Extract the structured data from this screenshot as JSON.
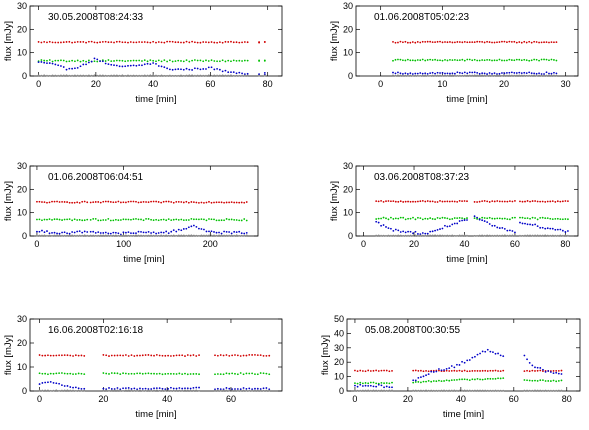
{
  "chart_data": [
    {
      "type": "scatter",
      "title": "30.05.2008T08:24:33",
      "xlabel": "time [min]",
      "ylabel": "flux [mJy]",
      "xlim": [
        -3,
        85
      ],
      "ylim": [
        0,
        30
      ],
      "xticks": [
        0,
        20,
        40,
        60,
        80
      ],
      "yticks": [
        0,
        10,
        20,
        30
      ],
      "segments": [
        [
          0,
          40
        ],
        [
          41,
          73
        ],
        [
          77,
          77
        ],
        [
          79,
          79
        ]
      ],
      "series": [
        {
          "color": "#d00000",
          "profile": "flat",
          "level": 14.5,
          "noise": 0.25
        },
        {
          "color": "#00c000",
          "profile": "flat",
          "level": 6.5,
          "noise": 0.35
        },
        {
          "color": "#0000c8",
          "profile": "curve",
          "pts": [
            [
              0,
              6
            ],
            [
              5,
              5
            ],
            [
              10,
              3
            ],
            [
              15,
              4.2
            ],
            [
              20,
              7.5
            ],
            [
              25,
              4.5
            ],
            [
              30,
              4
            ],
            [
              35,
              4.5
            ],
            [
              40,
              5.5
            ],
            [
              45,
              3
            ],
            [
              50,
              2.8
            ],
            [
              55,
              3
            ],
            [
              60,
              3.5
            ],
            [
              65,
              2
            ],
            [
              70,
              1.5
            ],
            [
              73,
              1
            ]
          ],
          "noise": 0.4
        },
        {
          "color": "#888888",
          "profile": "flat",
          "level": 0.2,
          "noise": 0.1
        }
      ]
    },
    {
      "type": "scatter",
      "title": "01.06.2008T05:02:23",
      "xlabel": "time [min]",
      "ylabel": "flux [mJy]",
      "xlim": [
        -4,
        32
      ],
      "ylim": [
        0,
        30
      ],
      "xticks": [
        0,
        10,
        20,
        30
      ],
      "yticks": [
        0,
        10,
        20,
        30
      ],
      "segments": [
        [
          2,
          28.5
        ]
      ],
      "series": [
        {
          "color": "#d00000",
          "profile": "flat",
          "level": 14.5,
          "noise": 0.25
        },
        {
          "color": "#00c000",
          "profile": "flat",
          "level": 6.8,
          "noise": 0.3
        },
        {
          "color": "#0000c8",
          "profile": "flat",
          "level": 1.2,
          "noise": 0.4
        },
        {
          "color": "#888888",
          "profile": "flat",
          "level": 0.2,
          "noise": 0.1
        }
      ]
    },
    {
      "type": "scatter",
      "title": "01.06.2008T06:04:51",
      "xlabel": "time [min]",
      "ylabel": "flux [mJy]",
      "xlim": [
        -8,
        255
      ],
      "ylim": [
        0,
        30
      ],
      "xticks": [
        0,
        100,
        200
      ],
      "yticks": [
        0,
        10,
        20,
        30
      ],
      "segments": [
        [
          0,
          58
        ],
        [
          62,
          242
        ]
      ],
      "series": [
        {
          "color": "#d00000",
          "profile": "flat",
          "level": 14.5,
          "noise": 0.3
        },
        {
          "color": "#00c000",
          "profile": "flat",
          "level": 7,
          "noise": 0.35
        },
        {
          "color": "#0000c8",
          "profile": "curve",
          "pts": [
            [
              0,
              2
            ],
            [
              30,
              1.2
            ],
            [
              60,
              2
            ],
            [
              90,
              1
            ],
            [
              120,
              1.5
            ],
            [
              150,
              1.5
            ],
            [
              170,
              3
            ],
            [
              180,
              4.8
            ],
            [
              190,
              2.5
            ],
            [
              210,
              1.5
            ],
            [
              242,
              1.5
            ]
          ],
          "noise": 0.5
        },
        {
          "color": "#888888",
          "profile": "flat",
          "level": 0.2,
          "noise": 0.1
        }
      ]
    },
    {
      "type": "scatter",
      "title": "03.06.2008T08:37:23",
      "xlabel": "time [min]",
      "ylabel": "flux [mJy]",
      "xlim": [
        -3,
        85
      ],
      "ylim": [
        0,
        30
      ],
      "xticks": [
        0,
        20,
        40,
        60,
        80
      ],
      "yticks": [
        0,
        10,
        20,
        30
      ],
      "segments": [
        [
          5,
          41
        ],
        [
          44,
          60
        ],
        [
          62,
          81
        ]
      ],
      "series": [
        {
          "color": "#d00000",
          "profile": "flat",
          "level": 14.8,
          "noise": 0.25
        },
        {
          "color": "#00c000",
          "profile": "flat",
          "level": 7.5,
          "noise": 0.4
        },
        {
          "color": "#0000c8",
          "profile": "curve",
          "pts": [
            [
              5,
              6
            ],
            [
              10,
              3
            ],
            [
              15,
              2
            ],
            [
              20,
              1.5
            ],
            [
              25,
              1
            ],
            [
              30,
              3
            ],
            [
              35,
              5
            ],
            [
              40,
              6.5
            ],
            [
              44,
              8
            ],
            [
              50,
              5
            ],
            [
              55,
              3
            ],
            [
              60,
              2
            ],
            [
              62,
              6
            ],
            [
              70,
              4
            ],
            [
              75,
              3
            ],
            [
              81,
              2
            ]
          ],
          "noise": 0.5
        },
        {
          "color": "#888888",
          "profile": "flat",
          "level": 0.2,
          "noise": 0.1
        }
      ]
    },
    {
      "type": "scatter",
      "title": "16.06.2008T02:16:18",
      "xlabel": "time [min]",
      "ylabel": "flux [mJy]",
      "xlim": [
        -3,
        76
      ],
      "ylim": [
        0,
        30
      ],
      "xticks": [
        0,
        20,
        40,
        60
      ],
      "yticks": [
        0,
        10,
        20,
        30
      ],
      "segments": [
        [
          0,
          14
        ],
        [
          20,
          50
        ],
        [
          55,
          72
        ]
      ],
      "series": [
        {
          "color": "#d00000",
          "profile": "flat",
          "level": 14.8,
          "noise": 0.25
        },
        {
          "color": "#00c000",
          "profile": "flat",
          "level": 7.2,
          "noise": 0.3
        },
        {
          "color": "#0000c8",
          "profile": "curve",
          "pts": [
            [
              0,
              3
            ],
            [
              3,
              3.8
            ],
            [
              6,
              3
            ],
            [
              10,
              1.5
            ],
            [
              14,
              0.8
            ],
            [
              20,
              1
            ],
            [
              35,
              1
            ],
            [
              50,
              1.2
            ],
            [
              55,
              1
            ],
            [
              72,
              1
            ]
          ],
          "noise": 0.3
        },
        {
          "color": "#888888",
          "profile": "flat",
          "level": 0.2,
          "noise": 0.1
        }
      ]
    },
    {
      "type": "scatter",
      "title": "05.08.2008T00:30:55",
      "xlabel": "time [min]",
      "ylabel": "flux [mJy]",
      "xlim": [
        -3,
        85
      ],
      "ylim": [
        0,
        50
      ],
      "xticks": [
        0,
        20,
        40,
        60,
        80
      ],
      "yticks": [
        0,
        10,
        20,
        30,
        40,
        50
      ],
      "segments": [
        [
          0,
          14
        ],
        [
          22,
          56
        ],
        [
          64,
          78
        ]
      ],
      "series": [
        {
          "color": "#d00000",
          "profile": "flat",
          "level": 14,
          "noise": 0.3
        },
        {
          "color": "#00c000",
          "profile": "curve",
          "pts": [
            [
              0,
              5.5
            ],
            [
              14,
              5.5
            ],
            [
              22,
              6
            ],
            [
              35,
              7.5
            ],
            [
              45,
              8
            ],
            [
              56,
              9
            ],
            [
              64,
              7.5
            ],
            [
              78,
              7
            ]
          ],
          "noise": 0.4
        },
        {
          "color": "#0000c8",
          "profile": "curve",
          "pts": [
            [
              0,
              3.5
            ],
            [
              14,
              3.5
            ],
            [
              22,
              7
            ],
            [
              30,
              14
            ],
            [
              38,
              17
            ],
            [
              45,
              24
            ],
            [
              50,
              28.5
            ],
            [
              56,
              25
            ],
            [
              64,
              24
            ],
            [
              68,
              17
            ],
            [
              72,
              14
            ],
            [
              78,
              12
            ]
          ],
          "noise": 1.0
        },
        {
          "color": "#888888",
          "profile": "flat",
          "level": 0.3,
          "noise": 0.1
        }
      ]
    }
  ]
}
